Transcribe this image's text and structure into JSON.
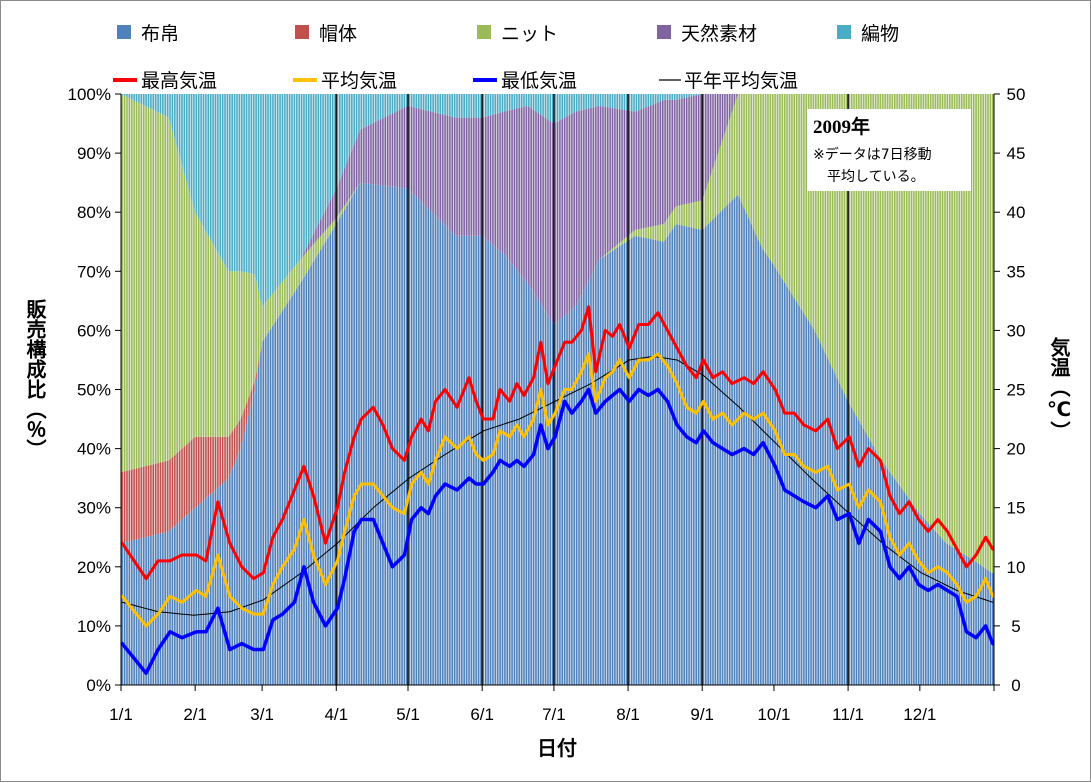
{
  "chart_data": {
    "type": "area",
    "title": "",
    "note": {
      "year": "2009年",
      "line1": "※データは7日移動",
      "line2": "平均している。"
    },
    "xlabel": "日付",
    "ylabel_left": "販売構成比（％）",
    "ylabel_right": "気温（℃）",
    "x_categories": [
      "1/1",
      "2/1",
      "3/1",
      "4/1",
      "5/1",
      "6/1",
      "7/1",
      "8/1",
      "9/1",
      "10/1",
      "11/1",
      "12/1"
    ],
    "month_start_days": [
      0,
      31,
      59,
      90,
      120,
      151,
      181,
      212,
      243,
      273,
      304,
      334
    ],
    "total_days": 365,
    "y_left_ticks": [
      "0%",
      "10%",
      "20%",
      "30%",
      "40%",
      "50%",
      "60%",
      "70%",
      "80%",
      "90%",
      "100%"
    ],
    "y_left_range": [
      0,
      100
    ],
    "y_right_ticks": [
      "0",
      "5",
      "10",
      "15",
      "20",
      "25",
      "30",
      "35",
      "40",
      "45",
      "50"
    ],
    "y_right_range": [
      0,
      50
    ],
    "legend_placement": "top",
    "stack_series": [
      {
        "name": "布帛",
        "color": "#4F81BD",
        "days": [
          0,
          20,
          31,
          45,
          50,
          56,
          59,
          75,
          90,
          100,
          120,
          140,
          151,
          160,
          170,
          181,
          190,
          200,
          215,
          227,
          232,
          243,
          258,
          268,
          273,
          290,
          304,
          318,
          334,
          345,
          357,
          364
        ],
        "values": [
          24,
          26,
          30,
          35,
          40,
          50,
          58,
          68,
          78,
          85,
          84,
          76,
          76,
          73,
          68,
          61,
          64,
          72,
          76,
          75,
          78,
          77,
          83,
          74,
          71,
          60,
          48,
          38,
          29,
          24,
          21,
          19
        ]
      },
      {
        "name": "帽体",
        "color": "#C0504D",
        "days": [
          0,
          20,
          31,
          45,
          50,
          56,
          59,
          75,
          90,
          100,
          120,
          140,
          151,
          160,
          170,
          181,
          190,
          200,
          215,
          227,
          232,
          243,
          258,
          268,
          273,
          290,
          304,
          318,
          334,
          345,
          357,
          364
        ],
        "values": [
          12,
          12,
          12,
          7,
          5,
          1.5,
          0,
          0,
          0,
          0,
          0,
          0,
          0,
          0,
          0,
          0,
          0,
          0,
          0,
          0,
          0,
          0,
          0,
          0,
          0,
          0,
          0,
          0,
          0,
          0,
          0,
          0
        ]
      },
      {
        "name": "ニット",
        "color": "#9BBB59",
        "days": [
          0,
          20,
          31,
          45,
          50,
          56,
          59,
          75,
          90,
          100,
          120,
          140,
          151,
          160,
          170,
          181,
          190,
          200,
          215,
          227,
          232,
          243,
          258,
          268,
          273,
          290,
          304,
          318,
          334,
          345,
          357,
          364
        ],
        "values": [
          64,
          58,
          38,
          28,
          25,
          18,
          6,
          4,
          1,
          0,
          0,
          0,
          0,
          0,
          0,
          0,
          0,
          0,
          1,
          3,
          3,
          5,
          17,
          26,
          29,
          40,
          52,
          62,
          71,
          76,
          79,
          81
        ]
      },
      {
        "name": "天然素材",
        "color": "#8064A2",
        "days": [
          0,
          20,
          31,
          45,
          50,
          56,
          59,
          75,
          90,
          100,
          120,
          140,
          151,
          160,
          170,
          181,
          190,
          200,
          215,
          227,
          232,
          243,
          258,
          268,
          273,
          290,
          304,
          318,
          334,
          345,
          357,
          364
        ],
        "values": [
          0,
          0,
          0,
          0,
          0,
          0,
          0,
          0,
          5,
          9,
          14,
          20,
          20,
          24,
          30,
          34,
          33,
          26,
          20,
          21,
          18,
          18,
          0,
          0,
          0,
          0,
          0,
          0,
          0,
          0,
          0,
          0
        ]
      },
      {
        "name": "編物",
        "color": "#4BACC6",
        "days": [
          0,
          20,
          31,
          45,
          50,
          56,
          59,
          75,
          90,
          100,
          120,
          140,
          151,
          160,
          170,
          181,
          190,
          200,
          215,
          227,
          232,
          243,
          258,
          268,
          273,
          290,
          304,
          318,
          334,
          345,
          357,
          364
        ],
        "values": [
          0,
          4,
          20,
          30,
          30,
          30.5,
          36,
          28,
          16,
          6,
          2,
          4,
          4,
          3,
          2,
          5,
          3,
          2,
          3,
          1,
          1,
          0,
          0,
          0,
          0,
          0,
          0,
          0,
          0,
          0,
          0,
          0
        ]
      }
    ],
    "line_series": [
      {
        "name": "最高気温",
        "color": "#FF0000",
        "width": 3,
        "days": [
          0,
          10,
          15,
          20,
          25,
          31,
          35,
          40,
          45,
          50,
          55,
          59,
          63,
          67,
          72,
          76,
          80,
          85,
          90,
          93,
          97,
          100,
          105,
          109,
          113,
          118,
          121,
          125,
          128,
          131,
          135,
          140,
          145,
          148,
          151,
          155,
          158,
          162,
          165,
          168,
          172,
          175,
          178,
          181,
          185,
          188,
          192,
          195,
          198,
          202,
          205,
          208,
          212,
          216,
          220,
          224,
          228,
          232,
          236,
          240,
          243,
          247,
          251,
          255,
          260,
          264,
          268,
          273,
          277,
          281,
          285,
          290,
          295,
          299,
          304,
          308,
          312,
          317,
          321,
          325,
          329,
          333,
          337,
          341,
          345,
          349,
          353,
          357,
          361,
          364
        ],
        "values": [
          12,
          9,
          10.5,
          10.5,
          11,
          11,
          10.5,
          15.5,
          12,
          10,
          9,
          9.5,
          12.5,
          14,
          16.5,
          18.5,
          16,
          12,
          15,
          18,
          21,
          22.5,
          23.5,
          22,
          20,
          19,
          21,
          22.5,
          21.5,
          24,
          25,
          23.5,
          26,
          24,
          22.5,
          22.5,
          25,
          24,
          25.5,
          24.5,
          26,
          29,
          25.5,
          27,
          29,
          29,
          30,
          32,
          26.5,
          30,
          29.5,
          30.5,
          28.5,
          30.5,
          30.5,
          31.5,
          30,
          28.5,
          27,
          26,
          27.5,
          26,
          26.5,
          25.5,
          26,
          25.5,
          26.5,
          25,
          23,
          23,
          22,
          21.5,
          22.5,
          20,
          21,
          18.5,
          20,
          19,
          16,
          14.5,
          15.5,
          14,
          13,
          14,
          13,
          11.5,
          10,
          11,
          12.5,
          11.5
        ]
      },
      {
        "name": "平均気温",
        "color": "#FFC000",
        "width": 3,
        "days": [
          0,
          10,
          15,
          20,
          25,
          31,
          35,
          40,
          45,
          50,
          55,
          59,
          63,
          67,
          72,
          76,
          80,
          85,
          90,
          93,
          97,
          100,
          105,
          109,
          113,
          118,
          121,
          125,
          128,
          131,
          135,
          140,
          145,
          148,
          151,
          155,
          158,
          162,
          165,
          168,
          172,
          175,
          178,
          181,
          185,
          188,
          192,
          195,
          198,
          202,
          205,
          208,
          212,
          216,
          220,
          224,
          228,
          232,
          236,
          240,
          243,
          247,
          251,
          255,
          260,
          264,
          268,
          273,
          277,
          281,
          285,
          290,
          295,
          299,
          304,
          308,
          312,
          317,
          321,
          325,
          329,
          333,
          337,
          341,
          345,
          349,
          353,
          357,
          361,
          364
        ],
        "values": [
          7.5,
          5,
          6,
          7.5,
          7,
          8,
          7.5,
          11,
          7.5,
          6.5,
          6,
          6,
          8.5,
          10,
          11.5,
          14,
          11,
          8.5,
          10.5,
          13,
          16,
          17,
          17,
          16,
          15,
          14.5,
          17,
          18,
          17,
          19,
          21,
          20,
          21,
          19.5,
          19,
          19.5,
          21.5,
          21,
          22,
          21,
          22.5,
          25,
          22,
          23,
          25,
          25,
          26.5,
          28,
          24,
          26,
          26.5,
          27.5,
          26,
          27.5,
          27.5,
          28,
          27,
          25.5,
          23.5,
          23,
          24,
          22.5,
          23,
          22,
          23,
          22.5,
          23,
          21.5,
          19.5,
          19.5,
          18.5,
          18,
          18.5,
          16.5,
          17,
          15,
          16.5,
          15.5,
          12.5,
          11,
          12,
          10.5,
          9.5,
          10,
          9.5,
          8.5,
          7,
          7.5,
          9,
          7.5
        ]
      },
      {
        "name": "最低気温",
        "color": "#0000FF",
        "width": 3.5,
        "days": [
          0,
          10,
          15,
          20,
          25,
          31,
          35,
          40,
          45,
          50,
          55,
          59,
          63,
          67,
          72,
          76,
          80,
          85,
          90,
          93,
          97,
          100,
          105,
          109,
          113,
          118,
          121,
          125,
          128,
          131,
          135,
          140,
          145,
          148,
          151,
          155,
          158,
          162,
          165,
          168,
          172,
          175,
          178,
          181,
          185,
          188,
          192,
          195,
          198,
          202,
          205,
          208,
          212,
          216,
          220,
          224,
          228,
          232,
          236,
          240,
          243,
          247,
          251,
          255,
          260,
          264,
          268,
          273,
          277,
          281,
          285,
          290,
          295,
          299,
          304,
          308,
          312,
          317,
          321,
          325,
          329,
          333,
          337,
          341,
          345,
          349,
          353,
          357,
          361,
          364
        ],
        "values": [
          3.5,
          1,
          3,
          4.5,
          4,
          4.5,
          4.5,
          6.5,
          3,
          3.5,
          3,
          3,
          5.5,
          6,
          7,
          10,
          7,
          5,
          6.5,
          9,
          13,
          14,
          14,
          12,
          10,
          11,
          14,
          15,
          14.5,
          16,
          17,
          16.5,
          17.5,
          17,
          17,
          18,
          19,
          18.5,
          19,
          18.5,
          19.5,
          22,
          20,
          21,
          24,
          23,
          24,
          25,
          23,
          24,
          24.5,
          25,
          24,
          25,
          24.5,
          25,
          24,
          22,
          21,
          20.5,
          21.5,
          20.5,
          20,
          19.5,
          20,
          19.5,
          20.5,
          18.5,
          16.5,
          16,
          15.5,
          15,
          16,
          14,
          14.5,
          12,
          14,
          13,
          10,
          9,
          10,
          8.5,
          8,
          8.5,
          8,
          7.5,
          4.5,
          4,
          5,
          3.5
        ]
      },
      {
        "name": "平年平均気温",
        "color": "#000000",
        "width": 1,
        "days": [
          0,
          15,
          30,
          45,
          59,
          75,
          90,
          105,
          120,
          135,
          151,
          166,
          181,
          196,
          212,
          222,
          232,
          243,
          258,
          273,
          288,
          304,
          319,
          334,
          349,
          364
        ],
        "values": [
          7,
          6.2,
          5.9,
          6.2,
          7.2,
          9.5,
          12,
          15,
          17.5,
          19.5,
          21.5,
          22.5,
          24,
          25.5,
          27.5,
          27.8,
          27.5,
          26.2,
          23.5,
          20.5,
          17.5,
          14.5,
          11.8,
          9.5,
          8,
          7
        ]
      }
    ],
    "month_marker_days": [
      90,
      120,
      151,
      181,
      212,
      243,
      304
    ]
  }
}
